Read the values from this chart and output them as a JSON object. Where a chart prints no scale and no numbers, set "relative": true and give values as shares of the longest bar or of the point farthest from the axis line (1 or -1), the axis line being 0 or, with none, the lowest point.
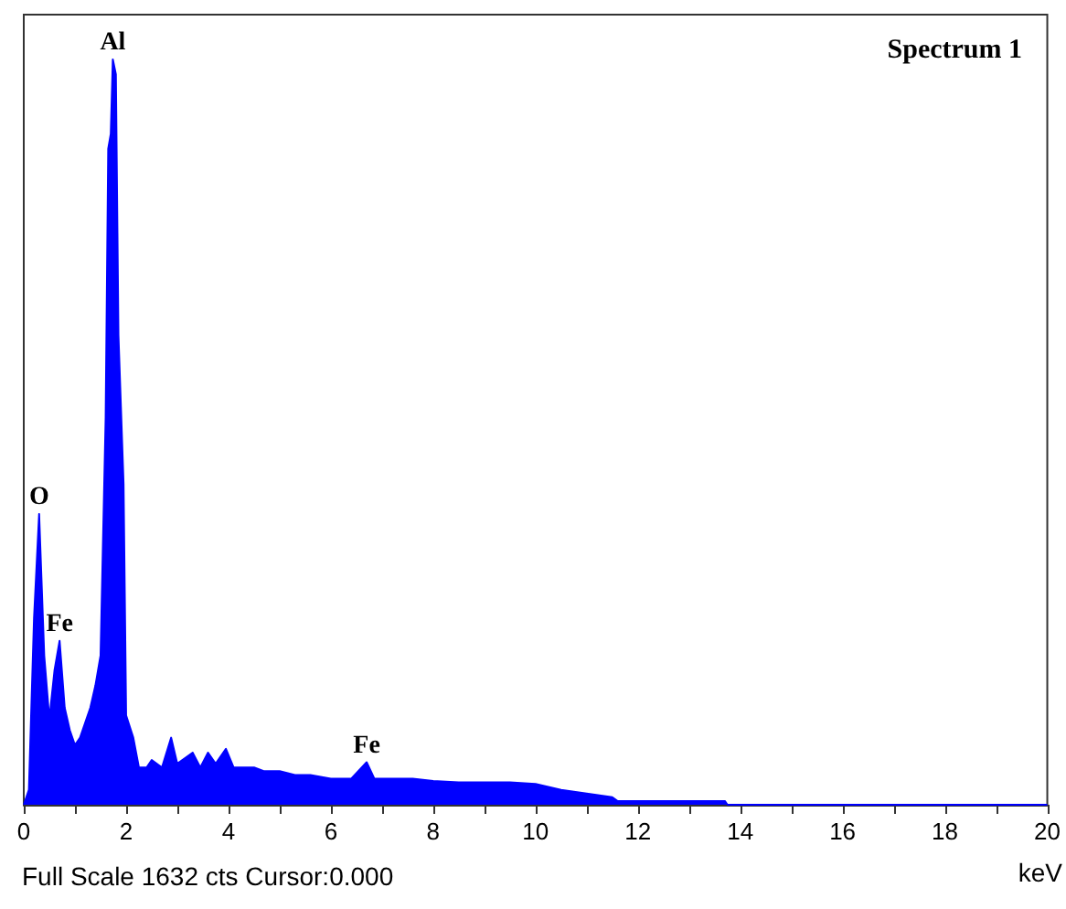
{
  "chart_data": {
    "type": "area",
    "relative": true,
    "xlabel": "keV",
    "color": "#0000ff",
    "marker": "none",
    "grid": false,
    "xlim": [
      0,
      20
    ],
    "xticks": [
      0,
      {
        "value": 1,
        "label": null
      },
      2,
      {
        "value": 3,
        "label": null
      },
      4,
      {
        "value": 5,
        "label": null
      },
      6,
      {
        "value": 7,
        "label": null
      },
      8,
      {
        "value": 9,
        "label": null
      },
      10,
      {
        "value": 11,
        "label": null
      },
      12,
      {
        "value": 13,
        "label": null
      },
      14,
      {
        "value": 15,
        "label": null
      },
      16,
      {
        "value": 17,
        "label": null
      },
      18,
      {
        "value": 19,
        "label": null
      },
      20
    ],
    "x": [
      0,
      0.1,
      0.2,
      0.3,
      0.4,
      0.5,
      0.6,
      0.7,
      0.8,
      0.9,
      1.0,
      1.1,
      1.2,
      1.3,
      1.4,
      1.5,
      1.6,
      1.65,
      1.7,
      1.74,
      1.8,
      1.85,
      1.95,
      2.0,
      2.14,
      2.25,
      2.4,
      2.5,
      2.7,
      2.88,
      3.0,
      3.3,
      3.45,
      3.6,
      3.75,
      3.95,
      4.1,
      4.3,
      4.5,
      4.7,
      5.0,
      5.3,
      5.6,
      6.0,
      6.4,
      6.7,
      6.85,
      7.2,
      7.6,
      8.0,
      8.5,
      9.0,
      9.5,
      10.0,
      10.5,
      11.0,
      11.5,
      11.6,
      13.7,
      13.75,
      20
    ],
    "values": [
      0,
      0.02,
      0.25,
      0.39,
      0.2,
      0.115,
      0.18,
      0.22,
      0.13,
      0.1,
      0.08,
      0.09,
      0.11,
      0.13,
      0.16,
      0.2,
      0.52,
      0.88,
      0.9,
      1,
      0.98,
      0.63,
      0.43,
      0.12,
      0.09,
      0.05,
      0.05,
      0.06,
      0.05,
      0.09,
      0.055,
      0.07,
      0.05,
      0.07,
      0.055,
      0.075,
      0.05,
      0.05,
      0.05,
      0.045,
      0.045,
      0.04,
      0.04,
      0.035,
      0.035,
      0.057,
      0.035,
      0.035,
      0.035,
      0.032,
      0.03,
      0.03,
      0.03,
      0.028,
      0.02,
      0.015,
      0.01,
      0.005,
      0.005,
      0,
      0
    ],
    "annotations": [
      "Spectrum 1",
      "Full Scale 1632 cts Cursor:0.000",
      {
        "text": "Al",
        "x": 1.74,
        "y": 1
      },
      {
        "text": "O",
        "x": 0.3,
        "y": 0.39
      },
      {
        "text": "Fe",
        "x": 0.7,
        "y": 0.22
      },
      {
        "text": "Fe",
        "x": 6.7,
        "y": 0.057
      }
    ]
  }
}
